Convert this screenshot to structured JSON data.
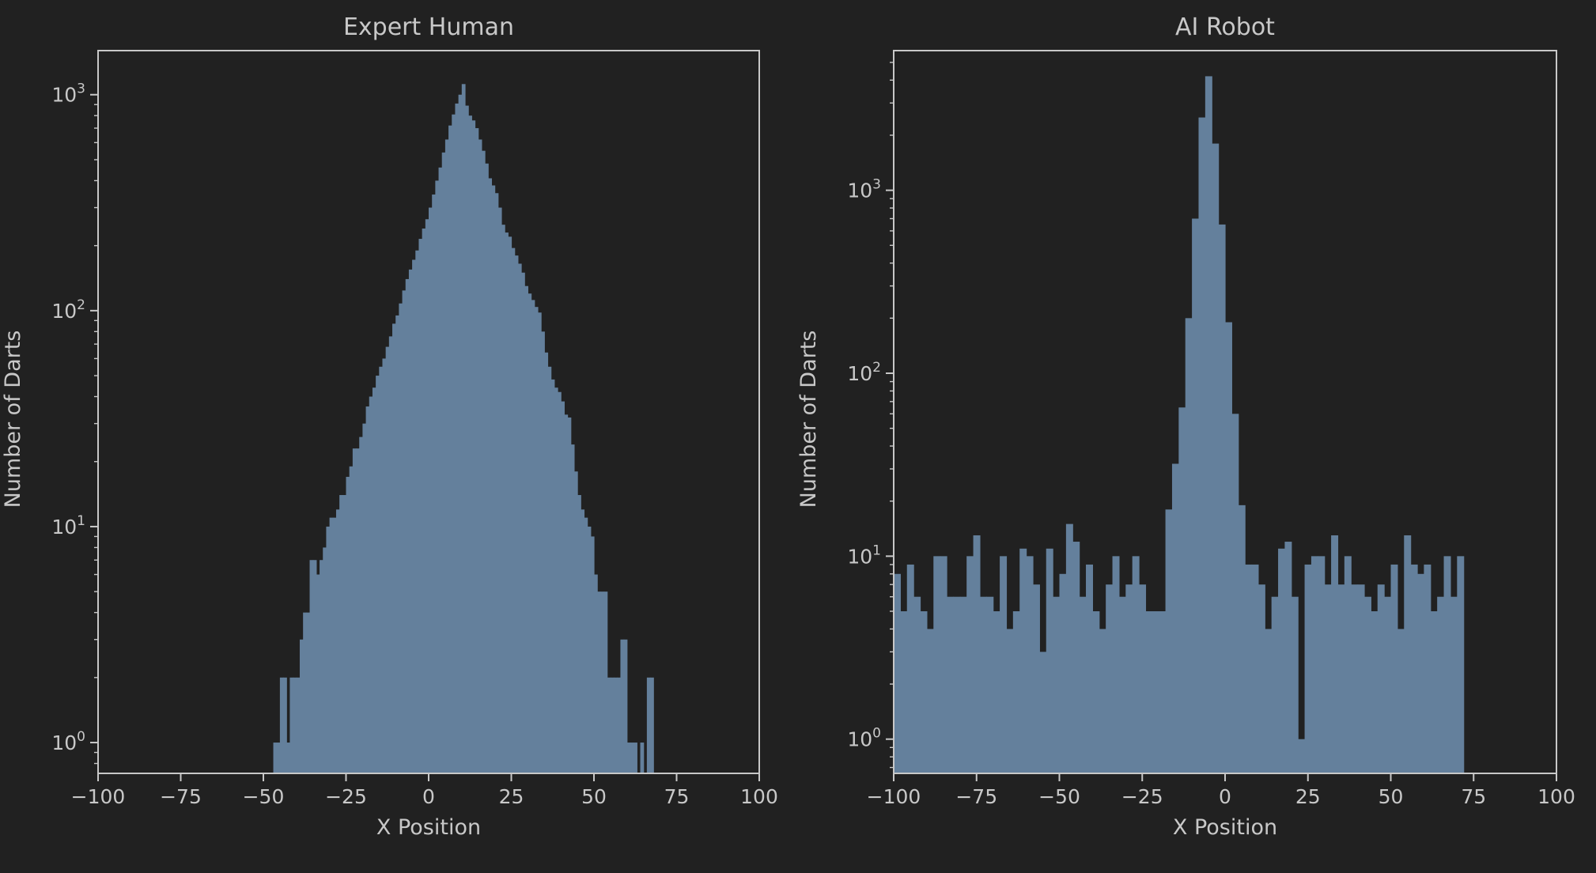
{
  "figure": {
    "background": "#212121",
    "axes_color": "#c8c8c8",
    "text_color": "#c8c8c8",
    "bar_color": "#64809c"
  },
  "chart_data": [
    {
      "type": "bar",
      "title": "Expert Human",
      "xlabel": "X Position",
      "ylabel": "Number of Darts",
      "xlim": [
        -100,
        100
      ],
      "ylim": [
        0.72,
        1600
      ],
      "yscale": "log",
      "grid": false,
      "xticks": [
        -100,
        -75,
        -50,
        -25,
        0,
        25,
        50,
        75,
        100
      ],
      "xtick_labels": [
        "−100",
        "−75",
        "−50",
        "−25",
        "0",
        "25",
        "50",
        "75",
        "100"
      ],
      "yticks": [
        1,
        10,
        100,
        1000
      ],
      "ytick_labels": [
        {
          "base": "10",
          "exp": "0"
        },
        {
          "base": "10",
          "exp": "1"
        },
        {
          "base": "10",
          "exp": "2"
        },
        {
          "base": "10",
          "exp": "3"
        }
      ],
      "bin_start": -47,
      "bin_width": 1,
      "counts": [
        1,
        1,
        2,
        2,
        1,
        2,
        2,
        2,
        3,
        4,
        4,
        7,
        7,
        6,
        7,
        8,
        10,
        11,
        11,
        12,
        14,
        14,
        17,
        19,
        23,
        23,
        26,
        30,
        36,
        40,
        44,
        50,
        55,
        60,
        68,
        76,
        87,
        95,
        108,
        124,
        140,
        155,
        172,
        190,
        215,
        240,
        265,
        300,
        345,
        400,
        460,
        540,
        620,
        720,
        810,
        910,
        1000,
        1120,
        890,
        800,
        760,
        700,
        620,
        550,
        480,
        410,
        380,
        350,
        300,
        250,
        230,
        220,
        195,
        180,
        165,
        150,
        130,
        120,
        112,
        104,
        98,
        80,
        64,
        55,
        48,
        44,
        42,
        38,
        33,
        32,
        24,
        18,
        14,
        12,
        11,
        10,
        9,
        6,
        5,
        5,
        5,
        2,
        2,
        2,
        2,
        3,
        3,
        1,
        1,
        1,
        0,
        1,
        0,
        2,
        2
      ]
    },
    {
      "type": "bar",
      "title": "AI Robot",
      "xlabel": "X Position",
      "ylabel": "Number of Darts",
      "xlim": [
        -100,
        100
      ],
      "ylim": [
        0.65,
        5800
      ],
      "yscale": "log",
      "grid": false,
      "xticks": [
        -100,
        -75,
        -50,
        -25,
        0,
        25,
        50,
        75,
        100
      ],
      "xtick_labels": [
        "−100",
        "−75",
        "−50",
        "−25",
        "0",
        "25",
        "50",
        "75",
        "100"
      ],
      "yticks": [
        1,
        10,
        100,
        1000
      ],
      "ytick_labels": [
        {
          "base": "10",
          "exp": "0"
        },
        {
          "base": "10",
          "exp": "1"
        },
        {
          "base": "10",
          "exp": "2"
        },
        {
          "base": "10",
          "exp": "3"
        }
      ],
      "bin_start": -100,
      "bin_width": 2,
      "counts": [
        8,
        5,
        9,
        6,
        5,
        4,
        10,
        10,
        6,
        6,
        6,
        10,
        13,
        6,
        6,
        5,
        10,
        4,
        5,
        11,
        10,
        7,
        3,
        11,
        6,
        8,
        15,
        12,
        6,
        9,
        5,
        4,
        7,
        10,
        6,
        7,
        10,
        7,
        5,
        5,
        5,
        18,
        32,
        65,
        200,
        700,
        2500,
        4200,
        1800,
        650,
        190,
        60,
        19,
        9,
        9,
        7,
        4,
        6,
        11,
        12,
        6,
        1,
        9,
        10,
        10,
        7,
        13,
        7,
        10,
        7,
        7,
        6,
        5,
        7,
        6,
        9,
        4,
        13,
        9,
        8,
        9,
        5,
        6,
        10,
        6,
        10
      ]
    }
  ]
}
